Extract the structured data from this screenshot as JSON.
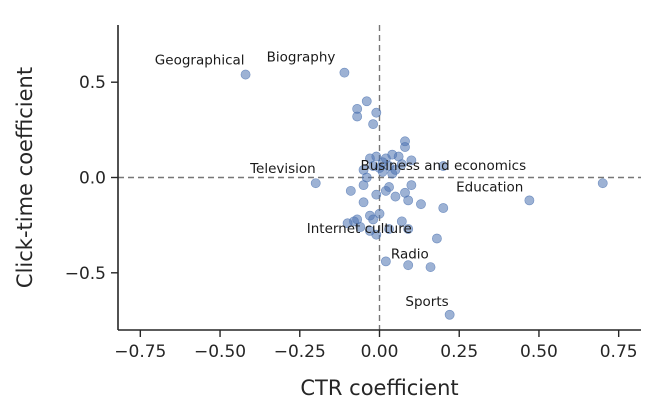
{
  "chart_data": {
    "type": "scatter",
    "title": "",
    "xlabel": "CTR coefficient",
    "ylabel": "Click-time coefficient",
    "xlim": [
      -0.82,
      0.82
    ],
    "ylim": [
      -0.8,
      0.8
    ],
    "xticks": [
      -0.75,
      -0.5,
      -0.25,
      0.0,
      0.25,
      0.5,
      0.75
    ],
    "xtick_labels": [
      "−0.75",
      "−0.50",
      "−0.25",
      "0.00",
      "0.25",
      "0.50",
      "0.75"
    ],
    "yticks": [
      -0.5,
      0.0,
      0.5
    ],
    "ytick_labels": [
      "−0.5",
      "0.0",
      "0.5"
    ],
    "reference_lines": {
      "x": 0.0,
      "y": 0.0,
      "style": "dashed"
    },
    "color": "#4c72b0",
    "points": [
      {
        "x": -0.42,
        "y": 0.54
      },
      {
        "x": -0.11,
        "y": 0.55
      },
      {
        "x": -0.07,
        "y": 0.36
      },
      {
        "x": -0.07,
        "y": 0.32
      },
      {
        "x": -0.04,
        "y": 0.4
      },
      {
        "x": -0.02,
        "y": 0.28
      },
      {
        "x": -0.01,
        "y": 0.34
      },
      {
        "x": 0.04,
        "y": 0.02
      },
      {
        "x": 0.04,
        "y": 0.12
      },
      {
        "x": 0.07,
        "y": 0.07
      },
      {
        "x": 0.08,
        "y": 0.19
      },
      {
        "x": 0.08,
        "y": 0.16
      },
      {
        "x": 0.1,
        "y": 0.09
      },
      {
        "x": -0.03,
        "y": 0.1
      },
      {
        "x": -0.01,
        "y": 0.11
      },
      {
        "x": 0.01,
        "y": 0.08
      },
      {
        "x": 0.02,
        "y": 0.1
      },
      {
        "x": 0.03,
        "y": 0.06
      },
      {
        "x": 0.0,
        "y": 0.05
      },
      {
        "x": -0.05,
        "y": 0.04
      },
      {
        "x": -0.04,
        "y": 0.0
      },
      {
        "x": 0.01,
        "y": 0.03
      },
      {
        "x": -0.02,
        "y": 0.06
      },
      {
        "x": 0.05,
        "y": 0.04
      },
      {
        "x": 0.06,
        "y": 0.11
      },
      {
        "x": -0.05,
        "y": -0.04
      },
      {
        "x": -0.09,
        "y": -0.07
      },
      {
        "x": -0.01,
        "y": -0.09
      },
      {
        "x": 0.02,
        "y": -0.07
      },
      {
        "x": 0.03,
        "y": -0.05
      },
      {
        "x": 0.05,
        "y": -0.1
      },
      {
        "x": 0.08,
        "y": -0.08
      },
      {
        "x": 0.1,
        "y": -0.04
      },
      {
        "x": 0.09,
        "y": -0.12
      },
      {
        "x": 0.13,
        "y": -0.14
      },
      {
        "x": 0.2,
        "y": -0.16
      },
      {
        "x": -0.05,
        "y": -0.13
      },
      {
        "x": -0.03,
        "y": -0.2
      },
      {
        "x": -0.02,
        "y": -0.22
      },
      {
        "x": 0.0,
        "y": -0.19
      },
      {
        "x": -0.07,
        "y": -0.22
      },
      {
        "x": -0.08,
        "y": -0.23
      },
      {
        "x": -0.1,
        "y": -0.24
      },
      {
        "x": -0.06,
        "y": -0.26
      },
      {
        "x": -0.03,
        "y": -0.28
      },
      {
        "x": -0.01,
        "y": -0.3
      },
      {
        "x": 0.07,
        "y": -0.23
      },
      {
        "x": 0.03,
        "y": -0.27
      },
      {
        "x": 0.09,
        "y": -0.27
      },
      {
        "x": 0.18,
        "y": -0.32
      },
      {
        "x": 0.02,
        "y": -0.44
      },
      {
        "x": 0.09,
        "y": -0.46
      },
      {
        "x": 0.16,
        "y": -0.47
      },
      {
        "x": 0.22,
        "y": -0.72
      },
      {
        "x": -0.2,
        "y": -0.03
      },
      {
        "x": 0.2,
        "y": 0.06
      },
      {
        "x": 0.47,
        "y": -0.12
      },
      {
        "x": 0.7,
        "y": -0.03
      }
    ],
    "annotations": [
      {
        "text": "Geographical",
        "x": -0.42,
        "y": 0.54,
        "align": "end",
        "dx": -1,
        "dy": -10
      },
      {
        "text": "Biography",
        "x": -0.11,
        "y": 0.55,
        "align": "end",
        "dx": -9,
        "dy": -11
      },
      {
        "text": "Television",
        "x": -0.2,
        "y": -0.03,
        "align": "end",
        "dx": 0,
        "dy": -10
      },
      {
        "text": "Business and economics",
        "x": 0.2,
        "y": 0.06,
        "align": "middle",
        "dx": 0,
        "dy": 4
      },
      {
        "text": "Education",
        "x": 0.47,
        "y": -0.12,
        "align": "end",
        "dx": -6,
        "dy": -9
      },
      {
        "text": "Internet culture",
        "x": -0.04,
        "y": -0.28,
        "align": "start",
        "dx": -60,
        "dy": 2
      },
      {
        "text": "Radio",
        "x": 0.02,
        "y": -0.44,
        "align": "start",
        "dx": 5,
        "dy": -3
      },
      {
        "text": "Sports",
        "x": 0.22,
        "y": -0.72,
        "align": "end",
        "dx": -1,
        "dy": -9
      }
    ]
  }
}
